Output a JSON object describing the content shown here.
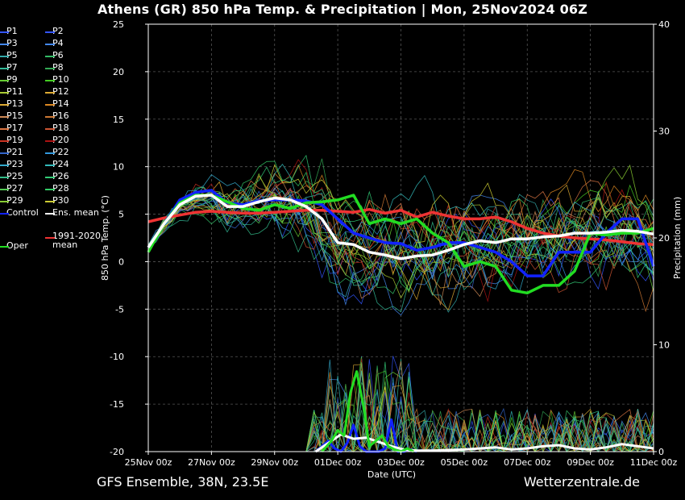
{
  "title": "Athens  (GR)  850 hPa Temp. & Precipitation | Mon, 25Nov2024 06Z",
  "footer": {
    "left": "GFS Ensemble, 38N, 23.5E",
    "right": "Wetterzentrale.de"
  },
  "chart_data": {
    "type": "line",
    "title": "Athens  (GR)  850 hPa Temp. & Precipitation | Mon, 25Nov2024 06Z",
    "xlabel": "Date (UTC)",
    "ylabel": "850 hPa Temp. (°C)",
    "ylabel_right": "Precipitation (mm)",
    "ylim": [
      -20,
      25
    ],
    "ylim_right": [
      0,
      40
    ],
    "y_ticks": [
      "25",
      "20",
      "15",
      "10",
      "5",
      "0",
      "-5",
      "-10",
      "-15",
      "-20"
    ],
    "y_ticks_right": [
      "40",
      "30",
      "20",
      "10",
      "0"
    ],
    "x_ticks": [
      "25Nov 00z",
      "27Nov 00z",
      "29Nov 00z",
      "01Dec 00z",
      "03Dec 00z",
      "05Dec 00z",
      "07Dec 00z",
      "09Dec 00z",
      "11Dec 00z"
    ],
    "x_start": "25Nov 00z",
    "x_end": "11Dec 00z",
    "grid": true,
    "legend_position": "left-outside",
    "legend": [
      {
        "label": "P1",
        "color": "#3355ff"
      },
      {
        "label": "P2",
        "color": "#3355ff"
      },
      {
        "label": "P3",
        "color": "#4488ee"
      },
      {
        "label": "P4",
        "color": "#4488ee"
      },
      {
        "label": "P5",
        "color": "#33aaaa"
      },
      {
        "label": "P6",
        "color": "#33bb66"
      },
      {
        "label": "P7",
        "color": "#33bb99"
      },
      {
        "label": "P8",
        "color": "#33aa55"
      },
      {
        "label": "P9",
        "color": "#66cc33"
      },
      {
        "label": "P10",
        "color": "#44cc22"
      },
      {
        "label": "P11",
        "color": "#aacc33"
      },
      {
        "label": "P12",
        "color": "#ddaa33"
      },
      {
        "label": "P13",
        "color": "#ddaa33"
      },
      {
        "label": "P14",
        "color": "#dd8822"
      },
      {
        "label": "P15",
        "color": "#cc8855"
      },
      {
        "label": "P16",
        "color": "#cc7733"
      },
      {
        "label": "P17",
        "color": "#dd7744"
      },
      {
        "label": "P18",
        "color": "#cc5533"
      },
      {
        "label": "P19",
        "color": "#cc3322"
      },
      {
        "label": "P20",
        "color": "#aa1111"
      },
      {
        "label": "P21",
        "color": "#3366cc"
      },
      {
        "label": "P22",
        "color": "#3399dd"
      },
      {
        "label": "P23",
        "color": "#33aacc"
      },
      {
        "label": "P24",
        "color": "#33bbbb"
      },
      {
        "label": "P25",
        "color": "#33bb88"
      },
      {
        "label": "P26",
        "color": "#33cc77"
      },
      {
        "label": "P27",
        "color": "#55cc55"
      },
      {
        "label": "P28",
        "color": "#33cc66"
      },
      {
        "label": "P29",
        "color": "#88cc33"
      },
      {
        "label": "P30",
        "color": "#cccc33"
      },
      {
        "label": "Control",
        "color": "#1122ff"
      },
      {
        "label": "Ens. mean",
        "color": "#ffffff"
      },
      {
        "label": "1991-2020 mean",
        "color": "#ee3333"
      },
      {
        "label": "Oper",
        "color": "#22dd22"
      }
    ],
    "series": [
      {
        "name": "Control",
        "color": "#1122ff",
        "x": [
          0,
          0.5,
          1,
          1.5,
          2,
          2.5,
          3,
          3.5,
          4,
          4.5,
          5,
          5.5,
          6,
          6.5,
          7,
          7.5,
          8,
          8.5,
          9,
          9.5,
          10,
          10.5,
          11,
          11.5,
          12,
          12.5,
          13,
          13.5,
          14,
          14.5,
          15,
          15.5,
          16
        ],
        "values": [
          1.5,
          4,
          6.5,
          7.3,
          7.5,
          6.2,
          6,
          6.4,
          6.5,
          6.5,
          6.4,
          6,
          4.5,
          3,
          2.5,
          2,
          1.9,
          1.2,
          1.5,
          2,
          2,
          1.5,
          1,
          0,
          -1.5,
          -1.5,
          1,
          1,
          1,
          3,
          4.5,
          4.5,
          -0.5
        ]
      },
      {
        "name": "Ens. mean",
        "color": "#ffffff",
        "x": [
          0,
          0.5,
          1,
          1.5,
          2,
          2.5,
          3,
          3.5,
          4,
          4.5,
          5,
          5.5,
          6,
          6.5,
          7,
          7.5,
          8,
          8.5,
          9,
          9.5,
          10,
          10.5,
          11,
          11.5,
          12,
          12.5,
          13,
          13.5,
          14,
          14.5,
          15,
          15.5,
          16
        ],
        "values": [
          1.5,
          4,
          6,
          6.9,
          7,
          5.8,
          5.8,
          6.3,
          6.7,
          6.5,
          5.8,
          4.5,
          2,
          1.8,
          1,
          0.7,
          0.3,
          0.6,
          0.7,
          1.2,
          1.8,
          2.2,
          2,
          2.4,
          2.4,
          2.6,
          2.7,
          3,
          3,
          3.1,
          3.3,
          3.2,
          2.9
        ]
      },
      {
        "name": "1991-2020 mean",
        "color": "#ee3333",
        "x": [
          0,
          0.5,
          1,
          1.5,
          2,
          2.5,
          3,
          3.5,
          4,
          4.5,
          5,
          5.5,
          6,
          6.5,
          7,
          7.5,
          8,
          8.5,
          9,
          9.5,
          10,
          10.5,
          11,
          11.5,
          12,
          12.5,
          13,
          13.5,
          14,
          14.5,
          15,
          15.5,
          16
        ],
        "values": [
          4.2,
          4.6,
          4.9,
          5.2,
          5.3,
          5.2,
          5.1,
          5.1,
          5.2,
          5.3,
          5.4,
          5.4,
          5.3,
          5.2,
          5.5,
          5.1,
          5.4,
          4.7,
          5.2,
          4.8,
          4.5,
          4.5,
          4.7,
          4.2,
          3.5,
          3,
          2.7,
          2.5,
          2.4,
          2.3,
          2.1,
          1.9,
          1.8
        ]
      },
      {
        "name": "Oper",
        "color": "#22dd22",
        "x": [
          0,
          0.5,
          1,
          1.5,
          2,
          2.5,
          3,
          3.5,
          4,
          4.5,
          5,
          5.5,
          6,
          6.5,
          7,
          7.5,
          8,
          8.5,
          9,
          9.5,
          10,
          10.5,
          11,
          11.5,
          12,
          12.5,
          13,
          13.5,
          14,
          14.5,
          15,
          15.5,
          16
        ],
        "values": [
          1,
          4,
          6.2,
          7,
          7,
          6.3,
          5.6,
          5.4,
          6,
          5.6,
          6.2,
          6.3,
          6.5,
          7,
          4,
          4.5,
          4,
          4.5,
          3,
          2,
          -0.5,
          0,
          -0.5,
          -3,
          -3.3,
          -2.5,
          -2.5,
          -1,
          3,
          2.8,
          3,
          3,
          3.5
        ]
      }
    ],
    "precipitation": {
      "unit": "mm",
      "series": [
        {
          "name": "Control",
          "color": "#1122ff",
          "x": [
            5.3,
            5.5,
            5.7,
            5.9,
            6.1,
            6.3,
            6.5,
            6.7,
            6.9,
            7.1,
            7.3,
            7.5,
            7.7,
            7.9,
            8.1,
            8.3,
            8.5
          ],
          "values": [
            0,
            0.5,
            1,
            0.3,
            0,
            0.8,
            2.5,
            0.5,
            0,
            0,
            0,
            0.3,
            3,
            0,
            0,
            0.2,
            0
          ]
        },
        {
          "name": "Ens. mean",
          "color": "#ffffff",
          "x": [
            5.3,
            5.7,
            6.1,
            6.5,
            6.9,
            7.3,
            7.7,
            8.1,
            8.5,
            9,
            10,
            11,
            11.5,
            12,
            12.5,
            13,
            13.5,
            14,
            14.5,
            15,
            15.5,
            16
          ],
          "values": [
            0,
            0.8,
            1.6,
            1.2,
            1.3,
            0.9,
            0.5,
            0.2,
            0.1,
            0.1,
            0.2,
            0.4,
            0.2,
            0.3,
            0.5,
            0.6,
            0.3,
            0.2,
            0.4,
            0.7,
            0.5,
            0.3
          ]
        },
        {
          "name": "Oper",
          "color": "#22dd22",
          "x": [
            5.5,
            5.8,
            6.0,
            6.2,
            6.4,
            6.6,
            6.8,
            7.0,
            7.2,
            7.4,
            7.6,
            7.8,
            8.0,
            8.2,
            8.4
          ],
          "values": [
            0,
            1,
            2,
            1.5,
            5.5,
            7.5,
            4.5,
            0.5,
            1,
            1.5,
            0.5,
            0.2,
            0,
            0.3,
            0
          ]
        }
      ]
    }
  }
}
